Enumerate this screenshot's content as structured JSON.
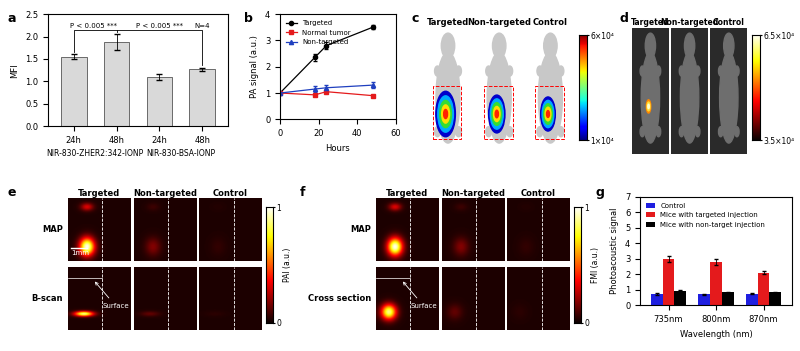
{
  "chart_data": [
    {
      "panel_label": "a",
      "type": "bar",
      "categories": [
        "24h",
        "48h",
        "24h",
        "48h"
      ],
      "group_labels": [
        "NIR-830-ZHER2:342-IONP",
        "NIR-830-BSA-IONP"
      ],
      "values": [
        1.55,
        1.87,
        1.1,
        1.27
      ],
      "errors": [
        0.05,
        0.18,
        0.07,
        0.04
      ],
      "color": "#d9d9d9",
      "ylabel": "MFI",
      "ylim": [
        0,
        2.5
      ],
      "yticks": [
        {
          "value": 0,
          "label": "0.0"
        },
        {
          "value": 0.5,
          "label": "0.5"
        },
        {
          "value": 1,
          "label": "1.0"
        },
        {
          "value": 1.5,
          "label": "1.5"
        },
        {
          "value": 2,
          "label": "2.0"
        },
        {
          "value": 2.5,
          "label": "2.5"
        }
      ],
      "annotations": [
        "P < 0.005 ***",
        "P < 0.005 ***",
        "N=4"
      ]
    },
    {
      "panel_label": "b",
      "type": "line",
      "x": [
        0,
        18,
        24,
        48
      ],
      "series": [
        {
          "name": "Targeted",
          "color": "#000000",
          "marker": "circle",
          "values": [
            1,
            2.35,
            2.8,
            3.5
          ],
          "errors": [
            0.05,
            0.15,
            0.12,
            0.08
          ]
        },
        {
          "name": "Normal tumor",
          "color": "#e41a1c",
          "marker": "square",
          "values": [
            1,
            0.93,
            1.05,
            0.9
          ],
          "errors": [
            0.05,
            0.05,
            0.05,
            0.04
          ]
        },
        {
          "name": "Non-targeted",
          "color": "#1f3fbf",
          "marker": "triangle",
          "values": [
            1,
            1.15,
            1.2,
            1.3
          ],
          "errors": [
            0.05,
            0.1,
            0.1,
            0.12
          ]
        }
      ],
      "xlabel": "Hours",
      "ylabel": "PA signal (a.u.)",
      "xlim": [
        0,
        60
      ],
      "xticks": [
        0,
        20,
        40,
        60
      ],
      "ylim": [
        0,
        4
      ],
      "yticks": [
        0,
        1,
        2,
        3,
        4
      ],
      "legend": "upper left"
    },
    {
      "panel_label": "g",
      "type": "bar",
      "categories": [
        "735nm",
        "800nm",
        "870nm"
      ],
      "series": [
        {
          "name": "Control",
          "color": "#1f1fe0",
          "values": [
            0.75,
            0.72,
            0.75
          ],
          "errors": [
            0.06,
            0.04,
            0.04
          ]
        },
        {
          "name": "Mice with targeted injection",
          "color": "#e41a1c",
          "values": [
            3.0,
            2.8,
            2.1
          ],
          "errors": [
            0.2,
            0.18,
            0.1
          ]
        },
        {
          "name": "Mice with non-target injection",
          "color": "#000000",
          "values": [
            0.95,
            0.85,
            0.85
          ],
          "errors": [
            0.05,
            0.04,
            0.04
          ]
        }
      ],
      "xlabel": "Wavelength (nm)",
      "ylabel": "Photoacoustic signal",
      "ylim": [
        0,
        7
      ],
      "yticks": [
        0,
        1,
        2,
        3,
        4,
        5,
        6,
        7
      ],
      "legend": "upper left"
    }
  ],
  "images": [
    {
      "panel_label": "c",
      "columns": [
        "Targeted",
        "Non-targeted",
        "Control"
      ],
      "colorbar": {
        "range": [
          10000,
          60000
        ],
        "ticks": [
          {
            "value": 60000,
            "label": "6×10⁴"
          },
          {
            "value": 10000,
            "label": "1×10⁴"
          }
        ]
      }
    },
    {
      "panel_label": "d",
      "columns": [
        "Targeted",
        "Non-targeted",
        "Control"
      ],
      "colorbar": {
        "range": [
          35000,
          65000
        ],
        "ticks": [
          {
            "value": 65000,
            "label": "6.5×10⁴"
          },
          {
            "value": 35000,
            "label": "3.5×10⁴"
          }
        ]
      }
    },
    {
      "panel_label": "e",
      "columns": [
        "Targeted",
        "Non-targeted",
        "Control"
      ],
      "rows": [
        "MAP",
        "B-scan"
      ],
      "scale_bar": "1mm",
      "pointer": "Surface",
      "colorbar": {
        "label": "PAI (a.u.)",
        "range": [
          0,
          1
        ],
        "ticks": [
          0,
          1
        ]
      }
    },
    {
      "panel_label": "f",
      "columns": [
        "Targeted",
        "Non-targeted",
        "Control"
      ],
      "rows": [
        "MAP",
        "Cross section"
      ],
      "pointer": "Surface",
      "colorbar": {
        "label": "FMI (a.u.)",
        "range": [
          0,
          1
        ],
        "ticks": [
          0,
          1
        ]
      }
    }
  ]
}
